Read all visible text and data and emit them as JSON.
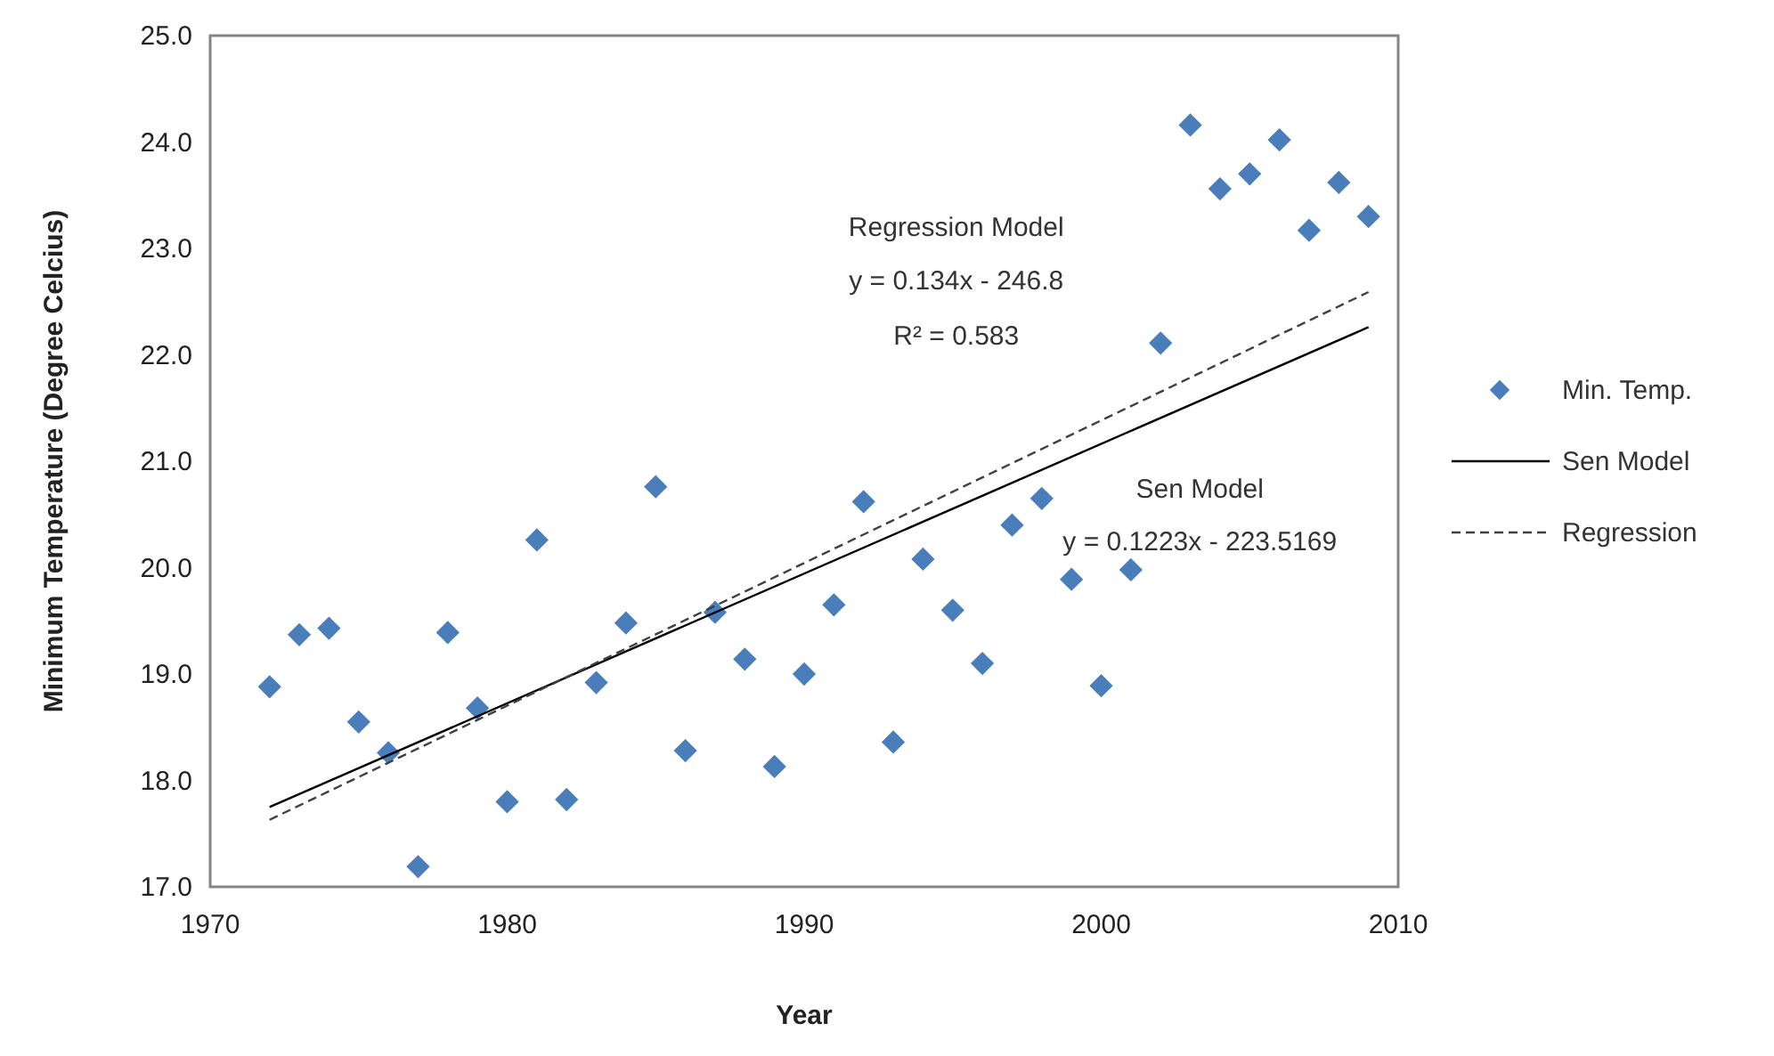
{
  "chart_data": {
    "type": "scatter",
    "xlabel": "Year",
    "ylabel": "Minimum Temperature (Degree Celcius)",
    "xlim": [
      1970,
      2010
    ],
    "xticks": [
      1970,
      1980,
      1990,
      2000,
      2010
    ],
    "ylim": [
      17,
      25
    ],
    "yticks": [
      {
        "value": 17,
        "label": "17.0"
      },
      {
        "value": 18,
        "label": "18.0"
      },
      {
        "value": 19,
        "label": "19.0"
      },
      {
        "value": 20,
        "label": "20.0"
      },
      {
        "value": 21,
        "label": "21.0"
      },
      {
        "value": 22,
        "label": "22.0"
      },
      {
        "value": 23,
        "label": "23.0"
      },
      {
        "value": 24,
        "label": "24.0"
      },
      {
        "value": 25,
        "label": "25.0"
      }
    ],
    "grid": false,
    "legend": "right",
    "series": [
      {
        "name": "Min. Temp.",
        "marker": "diamond",
        "color": "#4a7ebb",
        "x": [
          1972,
          1973,
          1974,
          1975,
          1976,
          1977,
          1978,
          1979,
          1980,
          1981,
          1982,
          1983,
          1984,
          1985,
          1986,
          1987,
          1988,
          1989,
          1990,
          1991,
          1992,
          1993,
          1994,
          1995,
          1996,
          1997,
          1998,
          1999,
          2000,
          2001,
          2002,
          2003,
          2004,
          2005,
          2006,
          2007,
          2008,
          2009
        ],
        "values": [
          18.88,
          19.37,
          19.43,
          18.55,
          18.26,
          17.19,
          19.39,
          18.68,
          17.8,
          20.26,
          17.82,
          18.92,
          19.48,
          20.76,
          18.28,
          19.58,
          19.14,
          18.13,
          19.0,
          19.65,
          20.62,
          18.36,
          20.08,
          19.6,
          19.1,
          20.4,
          20.65,
          19.89,
          18.89,
          19.98,
          22.11,
          24.16,
          23.56,
          23.7,
          24.02,
          23.17,
          23.62,
          23.3
        ]
      },
      {
        "name": "Sen Model",
        "type": "line",
        "line_style": "solid",
        "marker": "none",
        "color": "#000000",
        "x": [
          1972,
          2009
        ],
        "values": [
          17.75,
          22.26
        ]
      },
      {
        "name": "Regression",
        "type": "line",
        "line_style": "dashed",
        "marker": "none",
        "color": "#404040",
        "x": [
          1972,
          2009
        ],
        "values": [
          17.63,
          22.59
        ]
      }
    ],
    "annotations": [
      "Regression Model",
      "y = 0.134x - 246.8",
      "R² = 0.583",
      "Sen Model",
      "y = 0.1223x - 223.5169"
    ]
  }
}
